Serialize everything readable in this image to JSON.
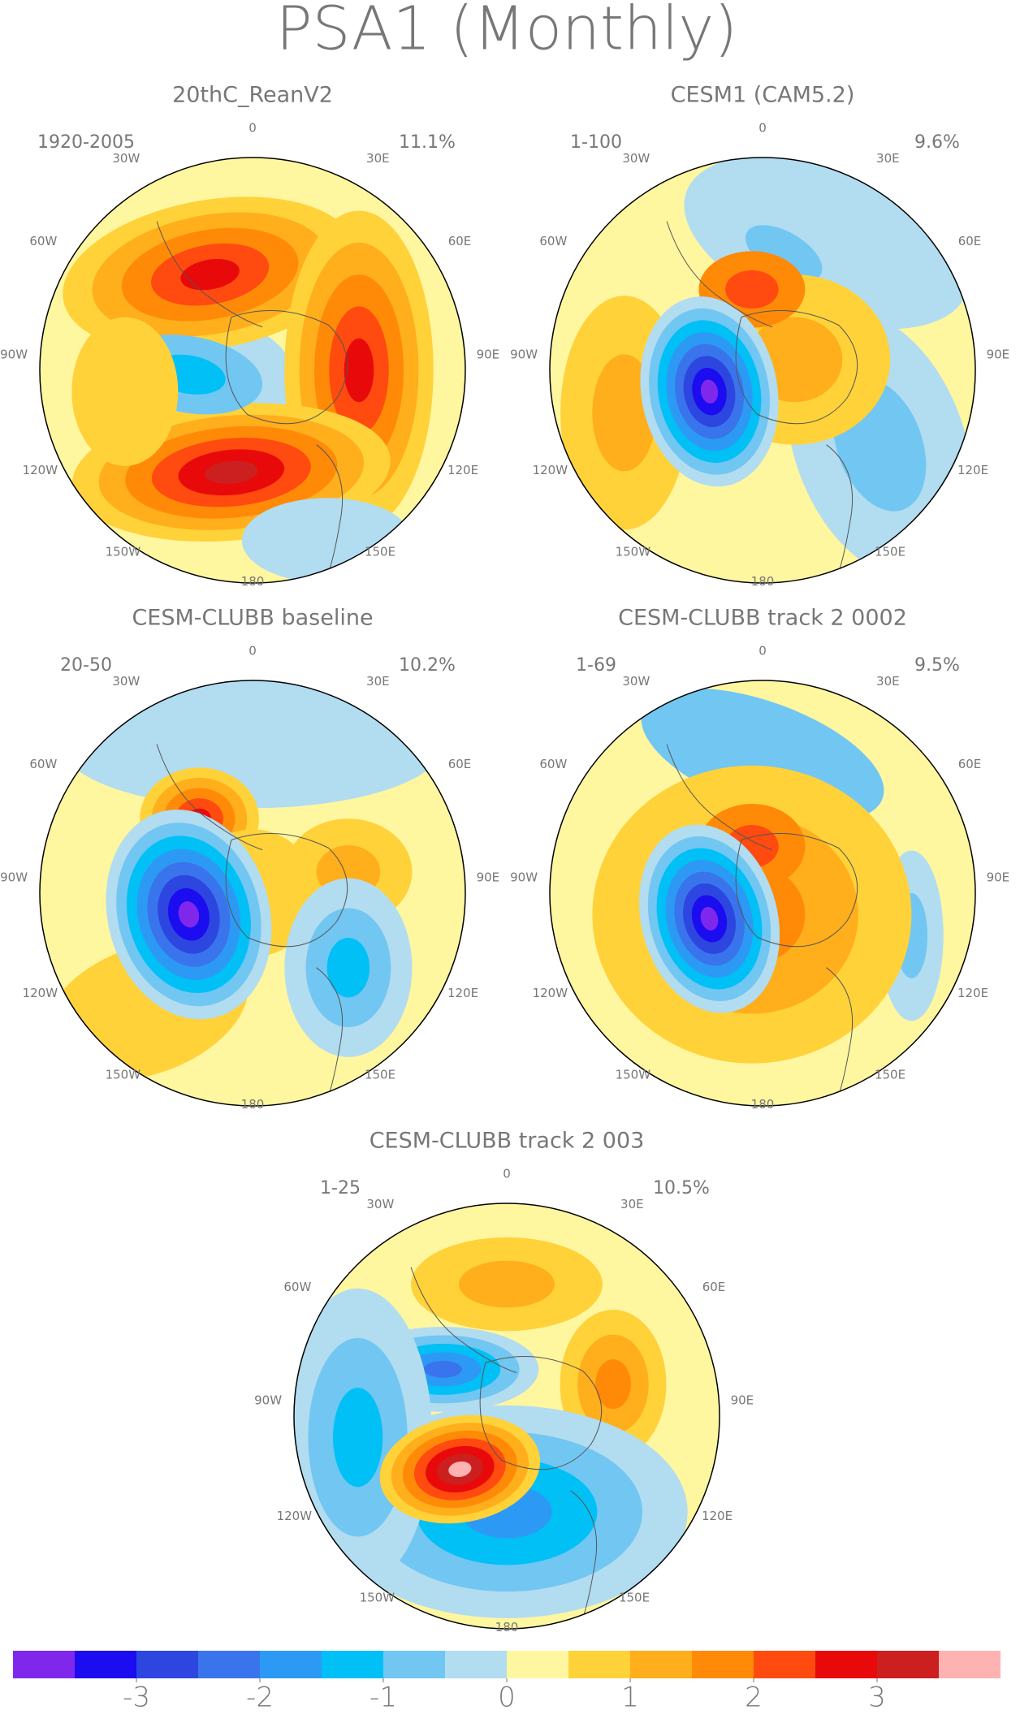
{
  "title": "PSA1 (Monthly)",
  "longitude_labels": [
    "0",
    "30E",
    "60E",
    "90E",
    "120E",
    "150E",
    "180",
    "150W",
    "120W",
    "90W",
    "60W",
    "30W"
  ],
  "panels": [
    {
      "title": "20thC_ReanV2",
      "period": "1920-2005",
      "variance": "11.1%"
    },
    {
      "title": "CESM1 (CAM5.2)",
      "period": "1-100",
      "variance": "9.6%"
    },
    {
      "title": "CESM-CLUBB baseline",
      "period": "20-50",
      "variance": "10.2%"
    },
    {
      "title": "CESM-CLUBB track 2 0002",
      "period": "1-69",
      "variance": "9.5%"
    },
    {
      "title": "CESM-CLUBB track 2 003",
      "period": "1-25",
      "variance": "10.5%"
    }
  ],
  "colorbar": {
    "lim": [
      -4,
      4
    ],
    "ticks": [
      -3,
      -2,
      -1,
      0,
      1,
      2,
      3
    ],
    "colors": [
      "#7f28ec",
      "#1c0cf0",
      "#2e46e0",
      "#3a74ec",
      "#2c9af4",
      "#00c0f6",
      "#72c6f2",
      "#b2dcf0",
      "#fff6a0",
      "#ffd23a",
      "#ffae1c",
      "#ff8a08",
      "#ff4a10",
      "#e80a0a",
      "#cc2020",
      "#ffb2b2"
    ]
  }
}
